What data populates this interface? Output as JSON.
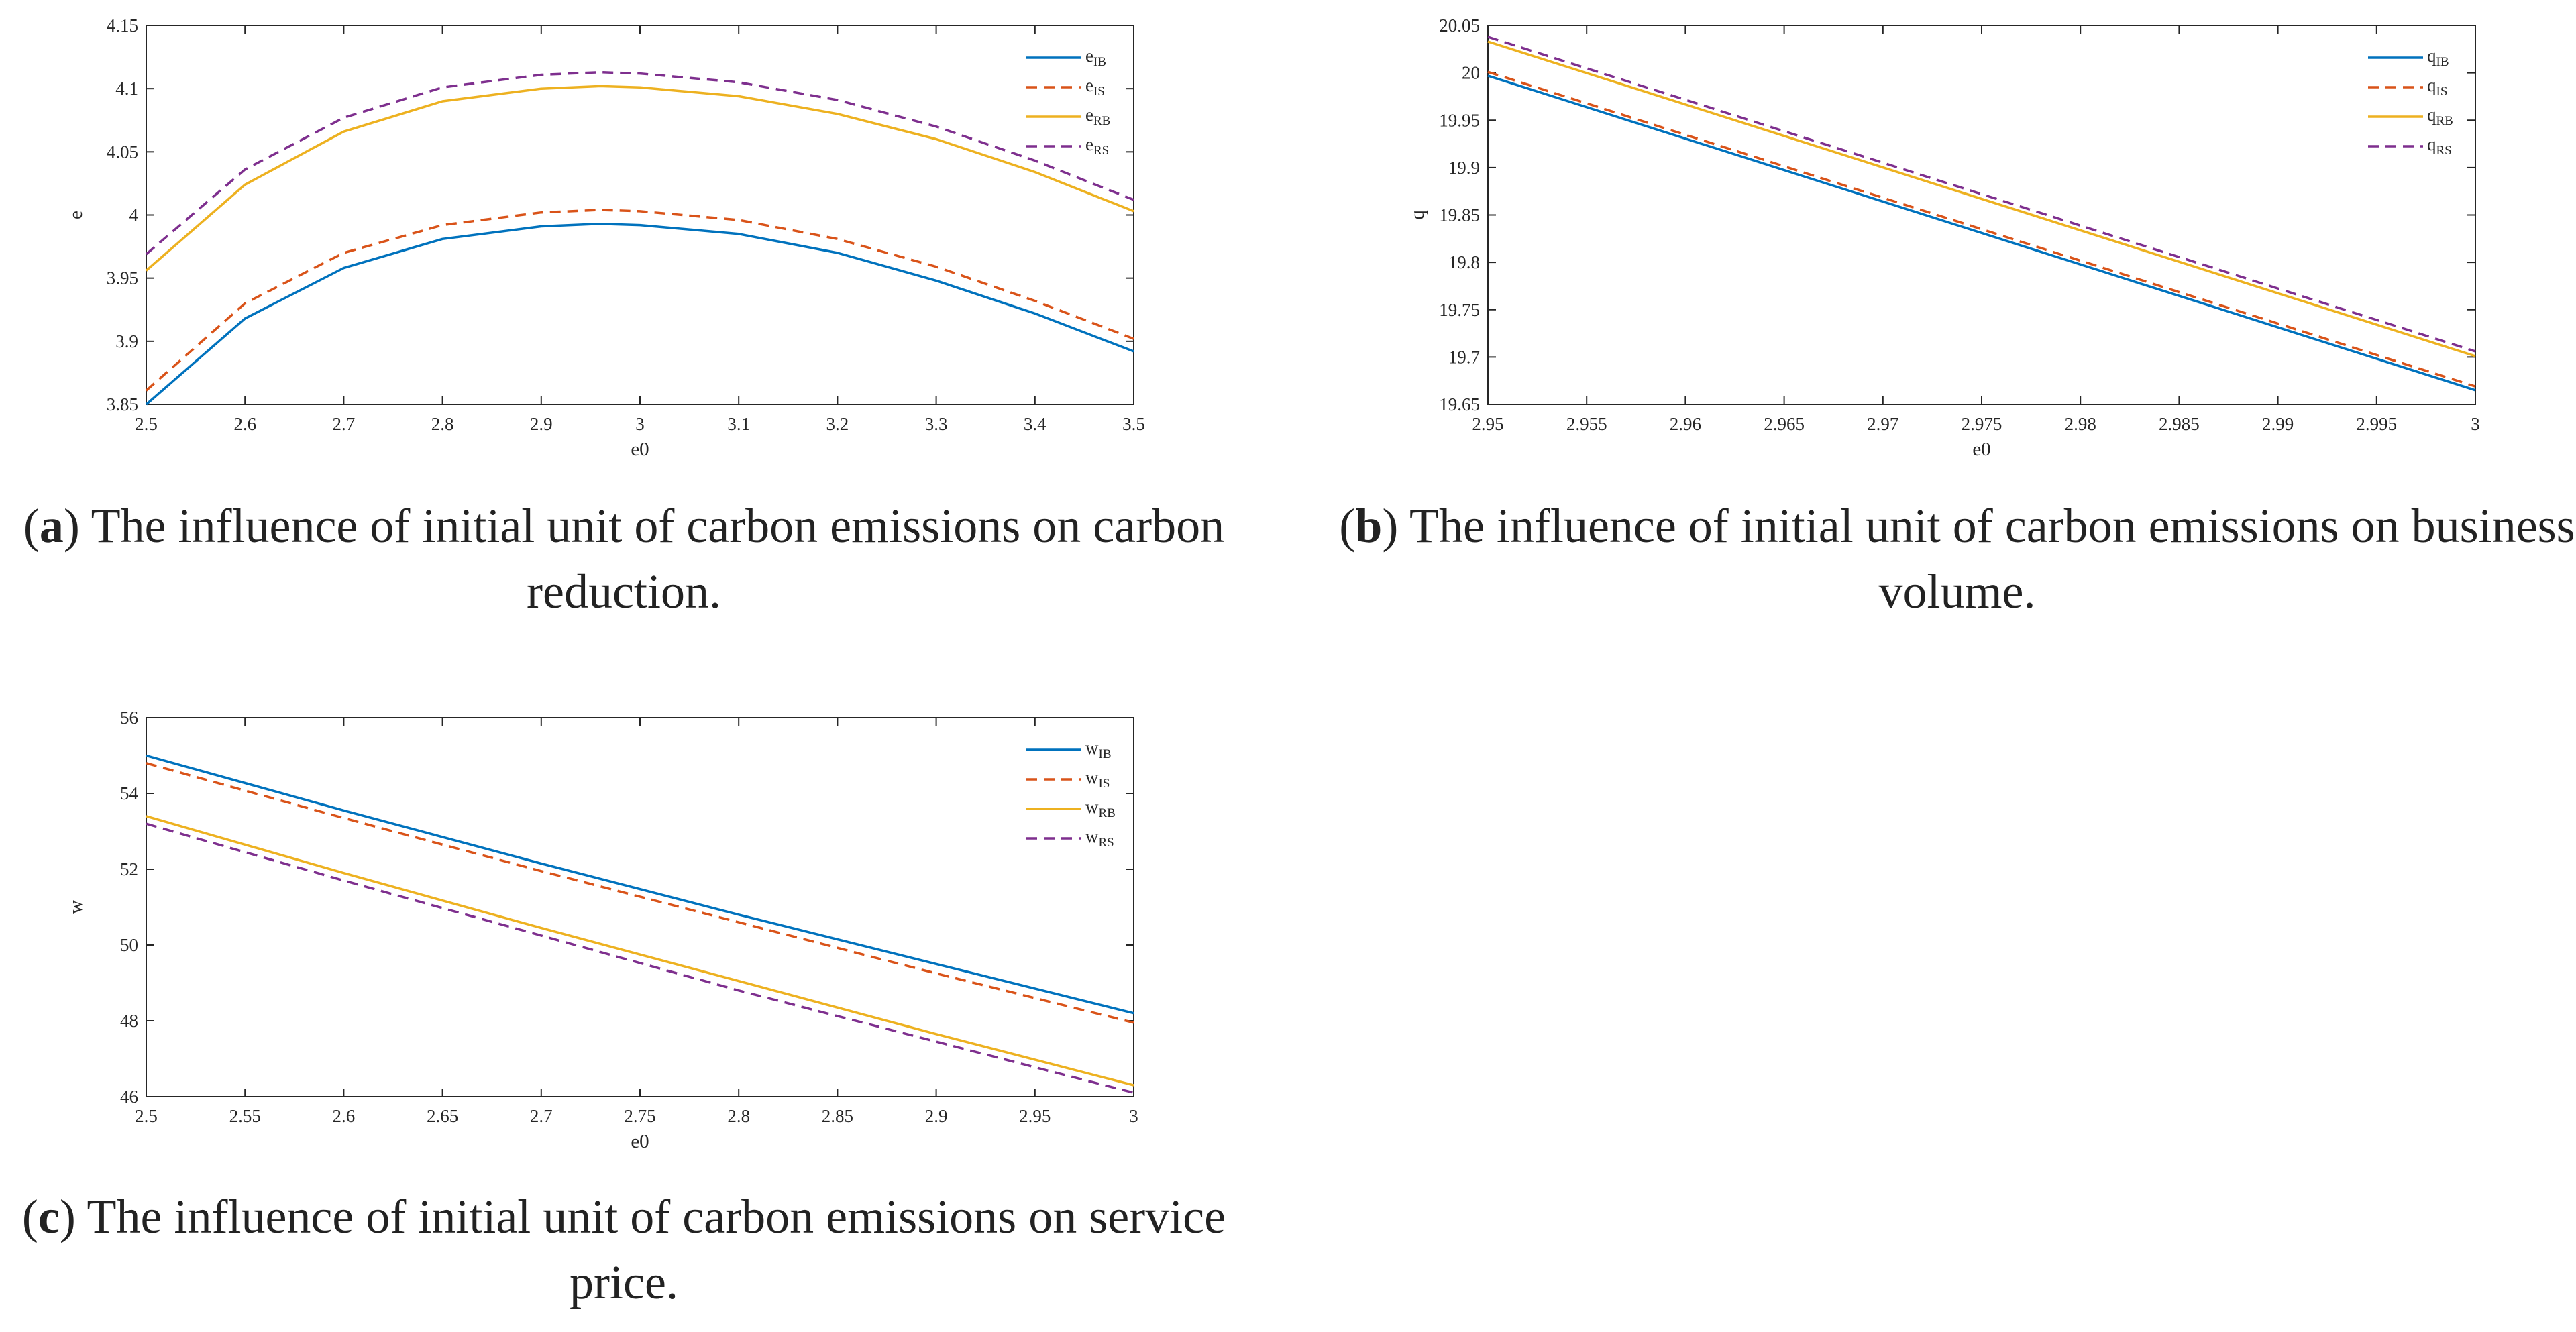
{
  "chart_data": [
    {
      "id": "a",
      "type": "line",
      "caption": {
        "letter": "a",
        "text": "The influence of initial unit of carbon emissions on carbon reduction."
      },
      "xlabel": "e0",
      "ylabel": "e",
      "xlim": [
        2.5,
        3.5
      ],
      "ylim": [
        3.85,
        4.15
      ],
      "xticks": [
        2.5,
        2.6,
        2.7,
        2.8,
        2.9,
        3.0,
        3.1,
        3.2,
        3.3,
        3.4,
        3.5
      ],
      "xtick_labels": [
        "2.5",
        "2.6",
        "2.7",
        "2.8",
        "2.9",
        "3",
        "3.1",
        "3.2",
        "3.3",
        "3.4",
        "3.5"
      ],
      "yticks": [
        3.85,
        3.9,
        3.95,
        4.0,
        4.05,
        4.1,
        4.15
      ],
      "ytick_labels": [
        "3.85",
        "3.9",
        "3.95",
        "4",
        "4.05",
        "4.1",
        "4.15"
      ],
      "grid": false,
      "legend_position": "top-right",
      "series": [
        {
          "name": "e",
          "sub": "IB",
          "color": "#0072BD",
          "dash": false,
          "x": [
            2.5,
            2.6,
            2.7,
            2.8,
            2.9,
            2.96,
            3.0,
            3.1,
            3.2,
            3.3,
            3.4,
            3.5
          ],
          "y": [
            3.85,
            3.918,
            3.958,
            3.981,
            3.991,
            3.993,
            3.992,
            3.985,
            3.97,
            3.948,
            3.922,
            3.892
          ]
        },
        {
          "name": "e",
          "sub": "IS",
          "color": "#D95319",
          "dash": true,
          "x": [
            2.5,
            2.6,
            2.7,
            2.8,
            2.9,
            2.96,
            3.0,
            3.1,
            3.2,
            3.3,
            3.4,
            3.5
          ],
          "y": [
            3.861,
            3.93,
            3.97,
            3.992,
            4.002,
            4.004,
            4.003,
            3.996,
            3.981,
            3.959,
            3.932,
            3.902
          ]
        },
        {
          "name": "e",
          "sub": "RB",
          "color": "#EDB120",
          "dash": false,
          "x": [
            2.5,
            2.6,
            2.7,
            2.8,
            2.9,
            2.96,
            3.0,
            3.1,
            3.2,
            3.3,
            3.4,
            3.5
          ],
          "y": [
            3.956,
            4.024,
            4.066,
            4.09,
            4.1,
            4.102,
            4.101,
            4.094,
            4.08,
            4.06,
            4.034,
            4.003
          ]
        },
        {
          "name": "e",
          "sub": "RS",
          "color": "#7E2F8E",
          "dash": true,
          "x": [
            2.5,
            2.6,
            2.7,
            2.8,
            2.9,
            2.96,
            3.0,
            3.1,
            3.2,
            3.3,
            3.4,
            3.5
          ],
          "y": [
            3.969,
            4.036,
            4.077,
            4.101,
            4.111,
            4.113,
            4.112,
            4.105,
            4.091,
            4.07,
            4.043,
            4.012
          ]
        }
      ]
    },
    {
      "id": "b",
      "type": "line",
      "caption": {
        "letter": "b",
        "text": "The influence of initial unit of carbon emissions on business volume."
      },
      "xlabel": "e0",
      "ylabel": "q",
      "xlim": [
        2.95,
        3.0
      ],
      "ylim": [
        19.65,
        20.05
      ],
      "xticks": [
        2.95,
        2.955,
        2.96,
        2.965,
        2.97,
        2.975,
        2.98,
        2.985,
        2.99,
        2.995,
        3.0
      ],
      "xtick_labels": [
        "2.95",
        "2.955",
        "2.96",
        "2.965",
        "2.97",
        "2.975",
        "2.98",
        "2.985",
        "2.99",
        "2.995",
        "3"
      ],
      "yticks": [
        19.65,
        19.7,
        19.75,
        19.8,
        19.85,
        19.9,
        19.95,
        20.0,
        20.05
      ],
      "ytick_labels": [
        "19.65",
        "19.7",
        "19.75",
        "19.8",
        "19.85",
        "19.9",
        "19.95",
        "20",
        "20.05"
      ],
      "grid": false,
      "legend_position": "top-right",
      "series": [
        {
          "name": "q",
          "sub": "IB",
          "color": "#0072BD",
          "dash": false,
          "x": [
            2.95,
            3.0
          ],
          "y": [
            19.997,
            19.665
          ]
        },
        {
          "name": "q",
          "sub": "IS",
          "color": "#D95319",
          "dash": true,
          "x": [
            2.95,
            3.0
          ],
          "y": [
            20.001,
            19.669
          ]
        },
        {
          "name": "q",
          "sub": "RB",
          "color": "#EDB120",
          "dash": false,
          "x": [
            2.95,
            3.0
          ],
          "y": [
            20.033,
            19.701
          ]
        },
        {
          "name": "q",
          "sub": "RS",
          "color": "#7E2F8E",
          "dash": true,
          "x": [
            2.95,
            3.0
          ],
          "y": [
            20.038,
            19.706
          ]
        }
      ]
    },
    {
      "id": "c",
      "type": "line",
      "caption": {
        "letter": "c",
        "text": "The influence of initial unit of carbon emissions on service price."
      },
      "xlabel": "e0",
      "ylabel": "w",
      "xlim": [
        2.5,
        3.0
      ],
      "ylim": [
        46,
        56
      ],
      "xticks": [
        2.5,
        2.55,
        2.6,
        2.65,
        2.7,
        2.75,
        2.8,
        2.85,
        2.9,
        2.95,
        3.0
      ],
      "xtick_labels": [
        "2.5",
        "2.55",
        "2.6",
        "2.65",
        "2.7",
        "2.75",
        "2.8",
        "2.85",
        "2.9",
        "2.95",
        "3"
      ],
      "yticks": [
        46,
        48,
        50,
        52,
        54,
        56
      ],
      "ytick_labels": [
        "46",
        "48",
        "50",
        "52",
        "54",
        "56"
      ],
      "grid": false,
      "legend_position": "top-right",
      "series": [
        {
          "name": "w",
          "sub": "IB",
          "color": "#0072BD",
          "dash": false,
          "x": [
            2.5,
            2.6,
            2.7,
            2.8,
            2.9,
            3.0
          ],
          "y": [
            55.0,
            53.55,
            52.15,
            50.8,
            49.5,
            48.2
          ]
        },
        {
          "name": "w",
          "sub": "IS",
          "color": "#D95319",
          "dash": true,
          "x": [
            2.5,
            2.6,
            2.7,
            2.8,
            2.9,
            3.0
          ],
          "y": [
            54.8,
            53.35,
            51.95,
            50.6,
            49.25,
            47.95
          ]
        },
        {
          "name": "w",
          "sub": "RB",
          "color": "#EDB120",
          "dash": false,
          "x": [
            2.5,
            2.6,
            2.7,
            2.8,
            2.9,
            3.0
          ],
          "y": [
            53.4,
            51.9,
            50.45,
            49.05,
            47.65,
            46.3
          ]
        },
        {
          "name": "w",
          "sub": "RS",
          "color": "#7E2F8E",
          "dash": true,
          "x": [
            2.5,
            2.6,
            2.7,
            2.8,
            2.9,
            3.0
          ],
          "y": [
            53.2,
            51.7,
            50.25,
            48.8,
            47.45,
            46.1
          ]
        }
      ]
    }
  ]
}
